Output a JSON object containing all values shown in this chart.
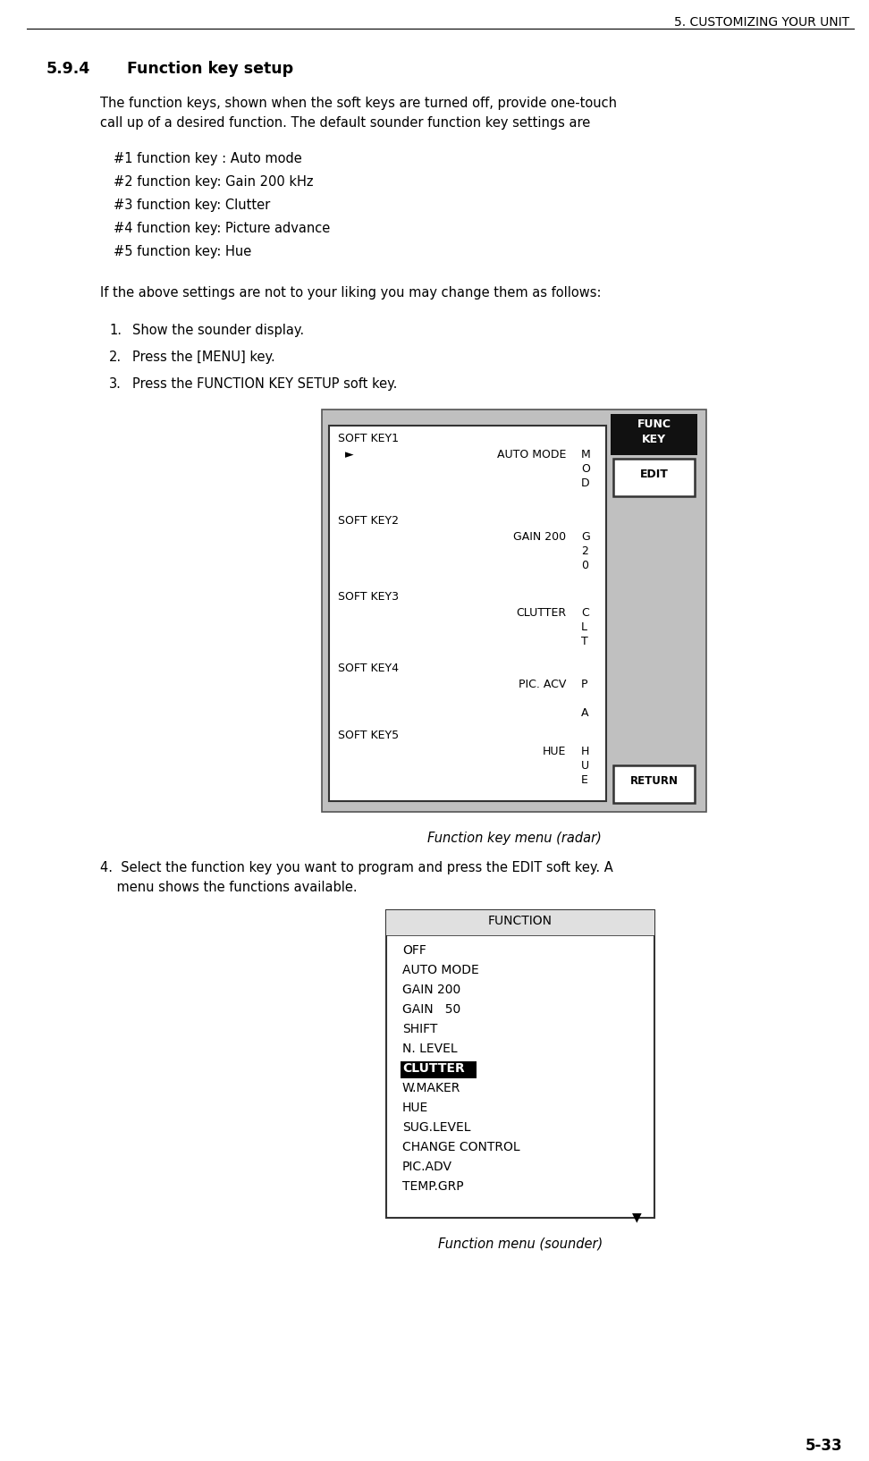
{
  "page_bg": "#ffffff",
  "header_text": "5. CUSTOMIZING YOUR UNIT",
  "section_num": "5.9.4",
  "section_title": "Function key setup",
  "para1_line1": "The function keys, shown when the soft keys are turned off, provide one-touch",
  "para1_line2": "call up of a desired function. The default sounder function key settings are",
  "bullet_items": [
    "#1 function key : Auto mode",
    "#2 function key: Gain 200 kHz",
    "#3 function key: Clutter",
    "#4 function key: Picture advance",
    "#5 function key: Hue"
  ],
  "para2": "If the above settings are not to your liking you may change them as follows:",
  "numbered_items": [
    "Show the sounder display.",
    "Press the [MENU] key.",
    "Press the FUNCTION KEY SETUP soft key."
  ],
  "diagram1_caption": "Function key menu (radar)",
  "para4_line1": "4.  Select the function key you want to program and press the EDIT soft key. A",
  "para4_line2": "    menu shows the functions available.",
  "diagram2_caption": "Function menu (sounder)",
  "page_num": "5-33",
  "func_menu_items": [
    "OFF",
    "AUTO MODE",
    "GAIN 200",
    "GAIN   50",
    "SHIFT",
    "N. LEVEL",
    "CLUTTER",
    "W.MAKER",
    "HUE",
    "SUG.LEVEL",
    "CHANGE CONTROL",
    "PIC.ADV",
    "TEMP.GRP"
  ]
}
